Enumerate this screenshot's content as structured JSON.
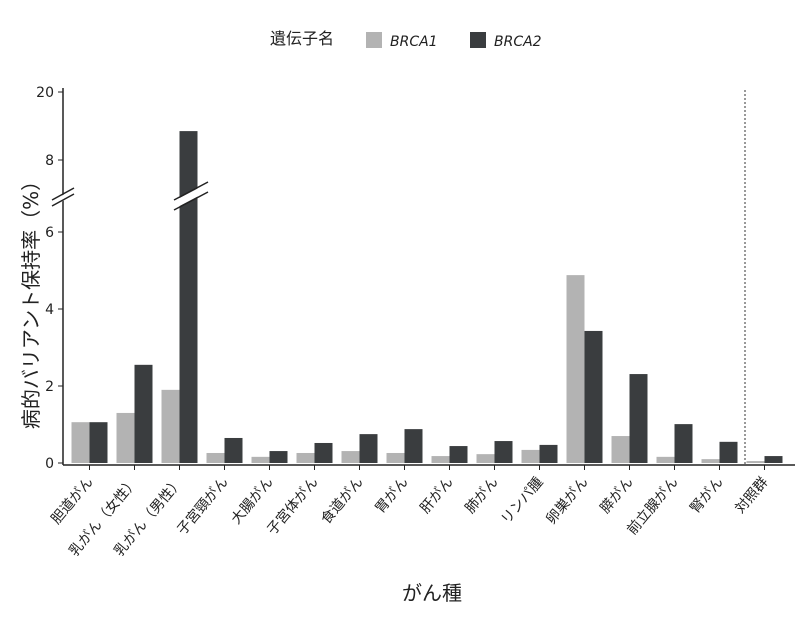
{
  "chart_data": {
    "type": "bar",
    "legend_title": "遺伝子名",
    "y_label": "病的バリアント保持率（%）",
    "x_label": "がん種",
    "categories": [
      "胆道がん",
      "乳がん（女性）",
      "乳がん（男性）",
      "子宮頸がん",
      "大腸がん",
      "子宮体がん",
      "食道がん",
      "胃がん",
      "肝がん",
      "肺がん",
      "リンパ腫",
      "卵巣がん",
      "膵がん",
      "前立腺がん",
      "腎がん",
      "対照群"
    ],
    "series": [
      {
        "name": "BRCA1",
        "color": "#b3b3b3",
        "values": [
          1.06,
          1.3,
          1.9,
          0.26,
          0.16,
          0.26,
          0.31,
          0.26,
          0.18,
          0.23,
          0.34,
          4.88,
          0.7,
          0.16,
          0.1,
          0.05
        ]
      },
      {
        "name": "BRCA2",
        "color": "#3a3d3f",
        "values": [
          1.06,
          2.55,
          13.1,
          0.65,
          0.31,
          0.52,
          0.75,
          0.88,
          0.44,
          0.57,
          0.47,
          3.43,
          2.31,
          1.01,
          0.55,
          0.18
        ]
      }
    ],
    "ylim": [
      0,
      20
    ],
    "yticks": [
      0,
      2,
      4,
      6,
      8,
      20
    ],
    "axis_break": true,
    "grid": false
  }
}
